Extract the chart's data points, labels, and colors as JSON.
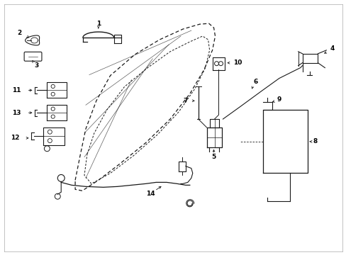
{
  "bg_color": "#ffffff",
  "line_color": "#1a1a1a",
  "fig_width": 4.89,
  "fig_height": 3.6,
  "dpi": 100,
  "door_outer_x": [
    1.05,
    1.12,
    1.2,
    1.35,
    1.55,
    1.9,
    2.25,
    2.58,
    2.82,
    2.95,
    3.02,
    3.04,
    3.0,
    2.88,
    2.68,
    2.4,
    2.05,
    1.68,
    1.38,
    1.15,
    1.05,
    1.05
  ],
  "door_outer_y": [
    1.05,
    1.4,
    1.78,
    2.18,
    2.54,
    2.84,
    3.05,
    3.2,
    3.27,
    3.28,
    3.22,
    3.1,
    2.9,
    2.62,
    2.28,
    1.92,
    1.58,
    1.28,
    1.05,
    0.9,
    0.92,
    1.05
  ],
  "door_inner_x": [
    1.22,
    1.32,
    1.5,
    1.75,
    2.08,
    2.4,
    2.68,
    2.86,
    2.94,
    2.96,
    2.9,
    2.75,
    2.52,
    2.22,
    1.88,
    1.55,
    1.28,
    1.18,
    1.22
  ],
  "door_inner_y": [
    1.42,
    1.72,
    2.05,
    2.38,
    2.65,
    2.88,
    3.02,
    3.1,
    3.05,
    2.9,
    2.65,
    2.35,
    2.02,
    1.7,
    1.4,
    1.15,
    1.0,
    1.12,
    1.42
  ]
}
